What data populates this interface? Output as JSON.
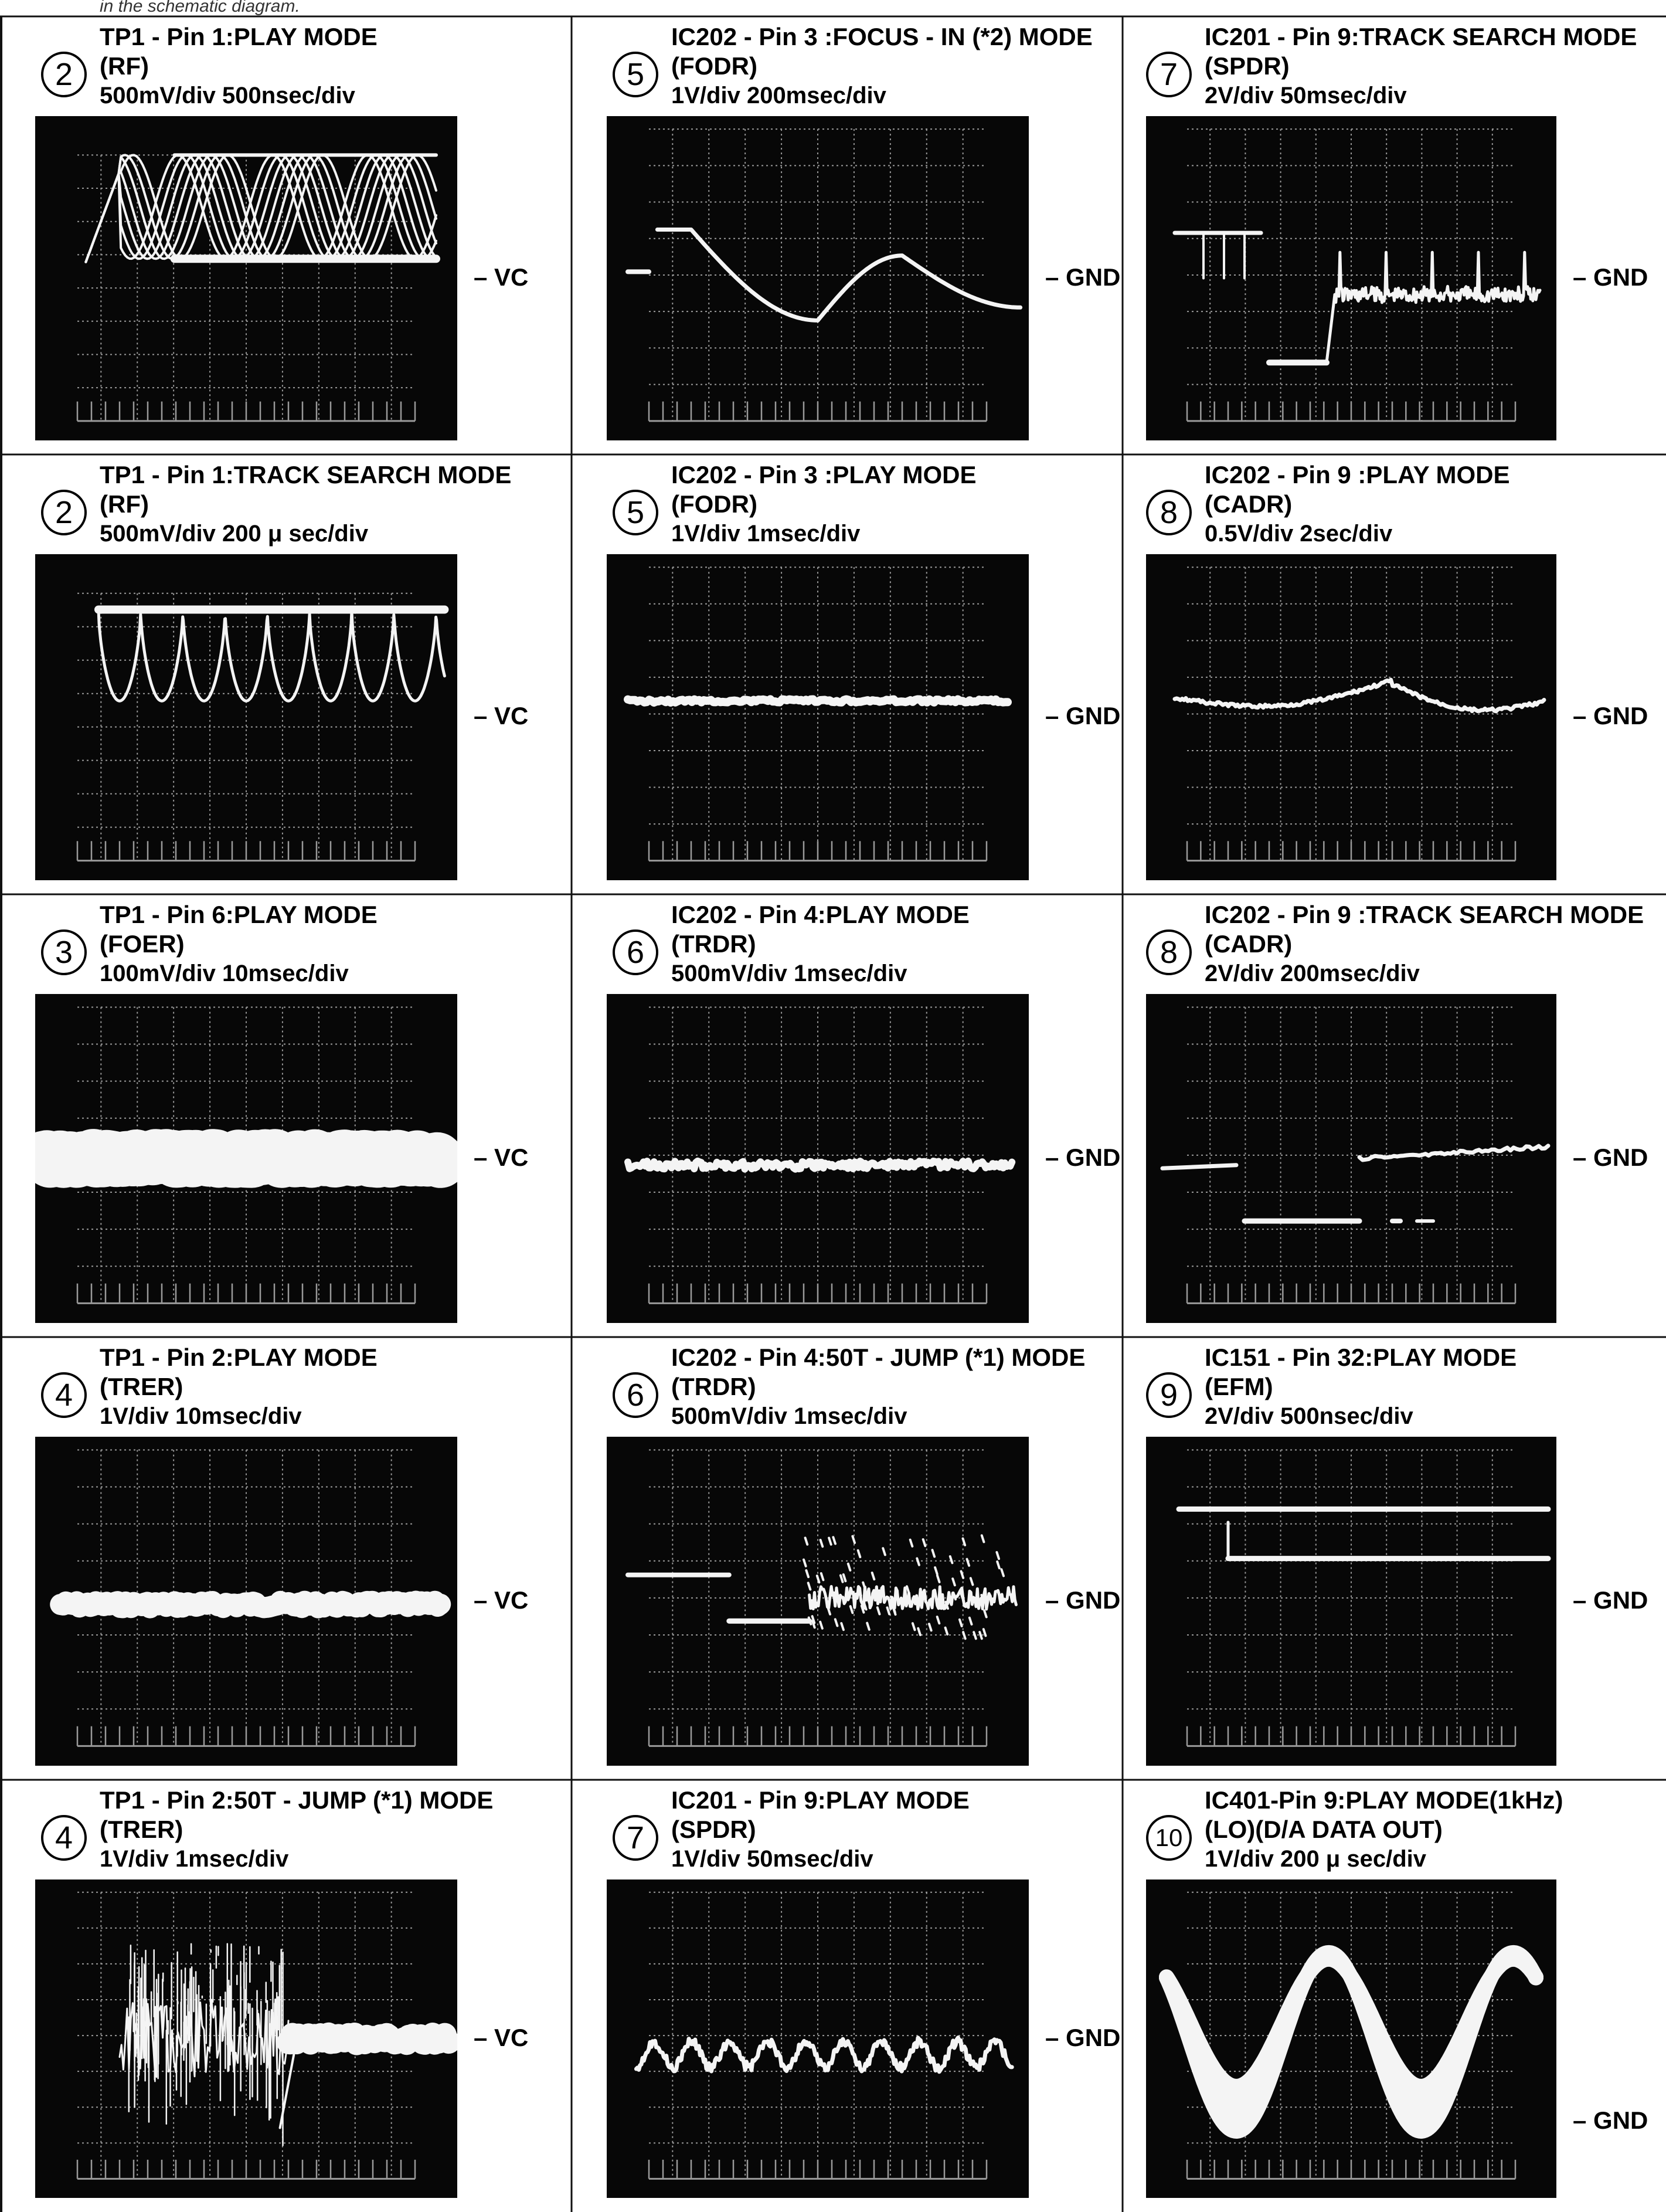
{
  "top_note": "in the schematic diagram.",
  "reference_labels": {
    "vc": "– VC",
    "gnd": "– GND"
  },
  "colors": {
    "trace": "#f4f4f4",
    "graticule": "#9a9a9a",
    "screen": "#070707",
    "rule": "#111111"
  },
  "columns": [
    {
      "panels": [
        {
          "num": "2",
          "title": "TP1 - Pin 1:PLAY MODE",
          "signal": "(RF)",
          "scale": "500mV/div   500nsec/div",
          "ref": "vc",
          "wave": "rf_play"
        },
        {
          "num": "2",
          "title": "TP1 - Pin 1:TRACK SEARCH MODE",
          "signal": "(RF)",
          "scale": "500mV/div   200 μ sec/div",
          "ref": "vc",
          "wave": "rf_search"
        },
        {
          "num": "3",
          "title": "TP1 - Pin 6:PLAY MODE",
          "signal": "(FOER)",
          "scale": "100mV/div   10msec/div",
          "ref": "vc",
          "wave": "thick_band"
        },
        {
          "num": "4",
          "title": "TP1 - Pin 2:PLAY MODE",
          "signal": "(TRER)",
          "scale": "1V/div   10msec/div",
          "ref": "vc",
          "wave": "band_medium"
        },
        {
          "num": "4",
          "title": "TP1 - Pin 2:50T - JUMP (*1) MODE",
          "signal": "(TRER)",
          "scale": "1V/div   1msec/div",
          "ref": "vc",
          "wave": "trer_jump"
        }
      ]
    },
    {
      "panels": [
        {
          "num": "5",
          "title": "IC202 - Pin 3 :FOCUS - IN (*2) MODE",
          "signal": "(FODR)",
          "scale": "1V/div   200msec/div",
          "ref": "gnd",
          "wave": "focus_in"
        },
        {
          "num": "5",
          "title": "IC202 - Pin 3 :PLAY MODE",
          "signal": "(FODR)",
          "scale": "1V/div   1msec/div",
          "ref": "gnd",
          "wave": "flat_thin"
        },
        {
          "num": "6",
          "title": "IC202 - Pin 4:PLAY MODE",
          "signal": "(TRDR)",
          "scale": "500mV/div   1msec/div",
          "ref": "gnd",
          "wave": "flat_noisy"
        },
        {
          "num": "6",
          "title": "IC202 - Pin 4:50T - JUMP (*1) MODE",
          "signal": "(TRDR)",
          "scale": "500mV/div   1msec/div",
          "ref": "gnd",
          "wave": "trdr_jump"
        },
        {
          "num": "7",
          "title": "IC201 - Pin 9:PLAY MODE",
          "signal": "(SPDR)",
          "scale": "1V/div   50msec/div",
          "ref": "gnd",
          "wave": "spdr_play"
        }
      ]
    },
    {
      "panels": [
        {
          "num": "7",
          "title": "IC201 - Pin 9:TRACK SEARCH MODE",
          "signal": "(SPDR)",
          "scale": "2V/div   50msec/div",
          "ref": "gnd",
          "wave": "spdr_search"
        },
        {
          "num": "8",
          "title": "IC202 - Pin 9 :PLAY MODE",
          "signal": "(CADR)",
          "scale": "0.5V/div   2sec/div",
          "ref": "gnd",
          "wave": "cadr_play"
        },
        {
          "num": "8",
          "title": "IC202 - Pin 9 :TRACK SEARCH MODE",
          "signal": "(CADR)",
          "scale": "2V/div 200msec/div",
          "ref": "gnd",
          "wave": "cadr_search"
        },
        {
          "num": "9",
          "title": "IC151 - Pin 32:PLAY MODE",
          "signal": "(EFM)",
          "scale": "2V/div   500nsec/div",
          "ref": "gnd",
          "wave": "efm"
        },
        {
          "num": "10",
          "title": "IC401-Pin 9:PLAY MODE(1kHz)",
          "signal": "(LO)(D/A DATA OUT)",
          "scale": "1V/div   200 μ sec/div",
          "ref": "gnd",
          "wave": "sine_lo"
        }
      ]
    }
  ]
}
